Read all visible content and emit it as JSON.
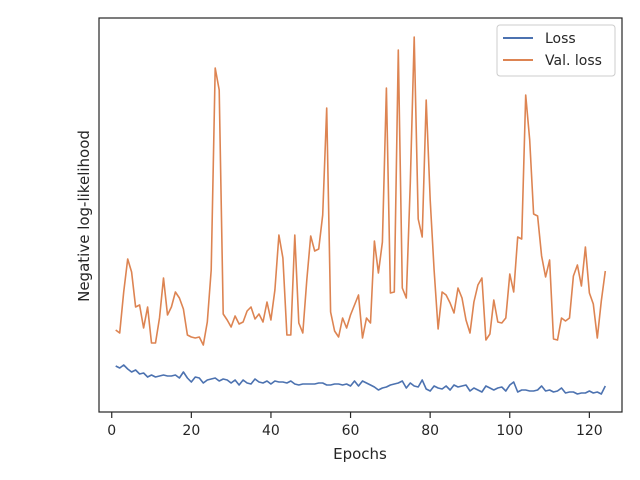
{
  "chart_data": {
    "type": "line",
    "title": "",
    "xlabel": "Epochs",
    "ylabel": "Negative log-likelihood",
    "xlim": [
      -3.2,
      128.2
    ],
    "xticks": [
      0,
      20,
      40,
      60,
      80,
      100,
      120
    ],
    "y_tick_labels_shown": false,
    "grid": false,
    "legend_position": "top-right",
    "series": [
      {
        "name": "Loss",
        "color": "#4c72b0",
        "x": [
          1,
          2,
          3,
          4,
          5,
          6,
          7,
          8,
          9,
          10,
          11,
          12,
          13,
          14,
          15,
          16,
          17,
          18,
          19,
          20,
          21,
          22,
          23,
          24,
          25,
          26,
          27,
          28,
          29,
          30,
          31,
          32,
          33,
          34,
          35,
          36,
          37,
          38,
          39,
          40,
          41,
          42,
          43,
          44,
          45,
          46,
          47,
          48,
          49,
          50,
          51,
          52,
          53,
          54,
          55,
          56,
          57,
          58,
          59,
          60,
          61,
          62,
          63,
          64,
          65,
          66,
          67,
          68,
          69,
          70,
          71,
          72,
          73,
          74,
          75,
          76,
          77,
          78,
          79,
          80,
          81,
          82,
          83,
          84,
          85,
          86,
          87,
          88,
          89,
          90,
          91,
          92,
          93,
          94,
          95,
          96,
          97,
          98,
          99,
          100,
          101,
          102,
          103,
          104,
          105,
          106,
          107,
          108,
          109,
          110,
          111,
          112,
          113,
          114,
          115,
          116,
          117,
          118,
          119,
          120,
          121,
          122,
          123,
          124
        ],
        "values": [
          366,
          368,
          365,
          369,
          372,
          370,
          374,
          373,
          377,
          375,
          377,
          376,
          375,
          376,
          376,
          375,
          378,
          372,
          378,
          382,
          377,
          378,
          383,
          380,
          379,
          378,
          381,
          379,
          380,
          383,
          380,
          385,
          380,
          383,
          384,
          379,
          382,
          383,
          381,
          384,
          381,
          382,
          382,
          383,
          381,
          384,
          385,
          384,
          384,
          384,
          384,
          383,
          383,
          385,
          385,
          384,
          384,
          385,
          384,
          386,
          381,
          386,
          381,
          383,
          385,
          387,
          390,
          388,
          387,
          385,
          384,
          383,
          381,
          388,
          383,
          386,
          387,
          380,
          389,
          391,
          386,
          388,
          389,
          386,
          390,
          385,
          387,
          386,
          385,
          391,
          388,
          390,
          392,
          386,
          388,
          390,
          388,
          387,
          391,
          385,
          382,
          392,
          390,
          390,
          391,
          391,
          390,
          386,
          391,
          390,
          392,
          391,
          388,
          393,
          392,
          392,
          394,
          393,
          393,
          391,
          393,
          392,
          394,
          386
        ],
        "note_units": "y values read in plot pixel space; y-axis carries no numeric tick labels"
      },
      {
        "name": "Val. loss",
        "color": "#dd8452",
        "x": [
          1,
          2,
          3,
          4,
          5,
          6,
          7,
          8,
          9,
          10,
          11,
          12,
          13,
          14,
          15,
          16,
          17,
          18,
          19,
          20,
          21,
          22,
          23,
          24,
          25,
          26,
          27,
          28,
          29,
          30,
          31,
          32,
          33,
          34,
          35,
          36,
          37,
          38,
          39,
          40,
          41,
          42,
          43,
          44,
          45,
          46,
          47,
          48,
          49,
          50,
          51,
          52,
          53,
          54,
          55,
          56,
          57,
          58,
          59,
          60,
          61,
          62,
          63,
          64,
          65,
          66,
          67,
          68,
          69,
          70,
          71,
          72,
          73,
          74,
          75,
          76,
          77,
          78,
          79,
          80,
          81,
          82,
          83,
          84,
          85,
          86,
          87,
          88,
          89,
          90,
          91,
          92,
          93,
          94,
          95,
          96,
          97,
          98,
          99,
          100,
          101,
          102,
          103,
          104,
          105,
          106,
          107,
          108,
          109,
          110,
          111,
          112,
          113,
          114,
          115,
          116,
          117,
          118,
          119,
          120,
          121,
          122,
          123,
          124
        ],
        "values": [
          330,
          333,
          292,
          259,
          272,
          307,
          305,
          328,
          307,
          343,
          343,
          318,
          278,
          315,
          307,
          292,
          298,
          309,
          335,
          337,
          338,
          337,
          345,
          322,
          270,
          68,
          90,
          314,
          320,
          327,
          316,
          324,
          322,
          311,
          307,
          319,
          314,
          322,
          302,
          320,
          290,
          235,
          258,
          335,
          335,
          235,
          323,
          333,
          280,
          236,
          251,
          249,
          215,
          108,
          312,
          331,
          337,
          318,
          328,
          315,
          305,
          295,
          338,
          318,
          323,
          241,
          273,
          242,
          88,
          293,
          292,
          50,
          288,
          298,
          183,
          37,
          219,
          237,
          100,
          200,
          270,
          329,
          292,
          295,
          303,
          313,
          288,
          298,
          320,
          333,
          302,
          285,
          278,
          340,
          334,
          300,
          322,
          323,
          318,
          274,
          292,
          237,
          239,
          95,
          140,
          214,
          216,
          256,
          277,
          260,
          339,
          340,
          318,
          321,
          318,
          276,
          265,
          286,
          247,
          293,
          304,
          338,
          301,
          271
        ],
        "note_units": "y values read in plot pixel space; y-axis carries no numeric tick labels"
      }
    ]
  }
}
